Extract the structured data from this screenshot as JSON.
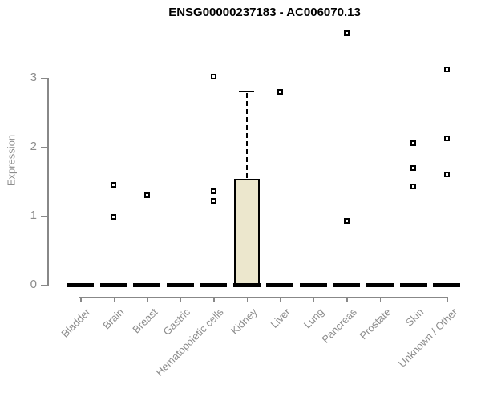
{
  "chart_data": {
    "type": "boxplot",
    "title": "ENSG00000237183 - AC006070.13",
    "ylabel": "Expression",
    "xlabel": "",
    "yticks": [
      0,
      1,
      2,
      3
    ],
    "ylim": [
      0,
      3.75
    ],
    "grid": false,
    "legend": "none",
    "categories": [
      "Bladder",
      "Brain",
      "Breast",
      "Gastric",
      "Hematopoietic cells",
      "Kidney",
      "Liver",
      "Lung",
      "Pancreas",
      "Prostate",
      "Skin",
      "Unknown / Other"
    ],
    "boxes": [
      {
        "category": "Bladder",
        "median": 0,
        "q1": 0,
        "q3": 0,
        "whisker_high": 0,
        "outliers": []
      },
      {
        "category": "Brain",
        "median": 0,
        "q1": 0,
        "q3": 0,
        "whisker_high": 0,
        "outliers": [
          1.45,
          0.98
        ]
      },
      {
        "category": "Breast",
        "median": 0,
        "q1": 0,
        "q3": 0,
        "whisker_high": 0,
        "outliers": [
          1.3
        ]
      },
      {
        "category": "Gastric",
        "median": 0,
        "q1": 0,
        "q3": 0,
        "whisker_high": 0,
        "outliers": []
      },
      {
        "category": "Hematopoietic cells",
        "median": 0,
        "q1": 0,
        "q3": 0,
        "whisker_high": 0,
        "outliers": [
          3.02,
          1.35,
          1.22
        ]
      },
      {
        "category": "Kidney",
        "median": 0,
        "q1": 0,
        "q3": 1.53,
        "whisker_high": 2.8,
        "outliers": []
      },
      {
        "category": "Liver",
        "median": 0,
        "q1": 0,
        "q3": 0,
        "whisker_high": 0,
        "outliers": [
          2.8
        ]
      },
      {
        "category": "Lung",
        "median": 0,
        "q1": 0,
        "q3": 0,
        "whisker_high": 0,
        "outliers": []
      },
      {
        "category": "Pancreas",
        "median": 0,
        "q1": 0,
        "q3": 0,
        "whisker_high": 0,
        "outliers": [
          3.64,
          0.92
        ]
      },
      {
        "category": "Prostate",
        "median": 0,
        "q1": 0,
        "q3": 0,
        "whisker_high": 0,
        "outliers": []
      },
      {
        "category": "Skin",
        "median": 0,
        "q1": 0,
        "q3": 0,
        "whisker_high": 0,
        "outliers": [
          2.05,
          1.69,
          1.42
        ]
      },
      {
        "category": "Unknown / Other",
        "median": 0,
        "q1": 0,
        "q3": 0,
        "whisker_high": 0,
        "outliers": [
          3.12,
          2.12,
          1.6
        ]
      }
    ],
    "colors": {
      "box_fill": "#ece7cd",
      "box_border": "#000000",
      "median": "#000000",
      "whisker": "#000000",
      "marker_border": "#000000",
      "marker_fill": "#ffffff",
      "axis": "#888888",
      "tick_label": "#8c8c8c",
      "title": "#000000",
      "background": "#ffffff"
    }
  }
}
